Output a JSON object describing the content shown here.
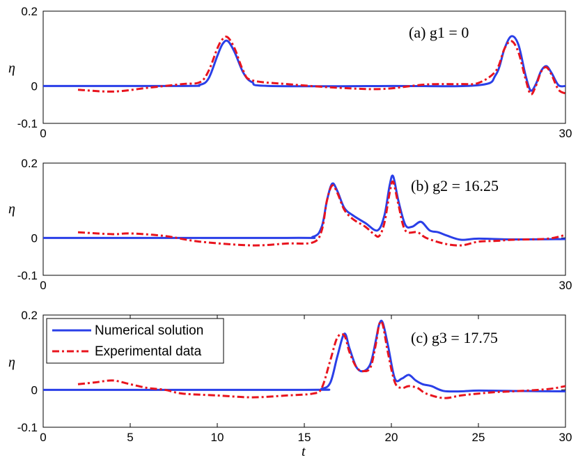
{
  "figure": {
    "xlabel": "t"
  },
  "legend": {
    "entries": [
      "Numerical solution",
      "Experimental data"
    ]
  },
  "chart_data": [
    {
      "type": "line",
      "panel_label": "(a) g1 = 0",
      "ylabel": "η",
      "xlim": [
        0,
        30
      ],
      "ylim": [
        -0.1,
        0.2
      ],
      "xticks": [
        0,
        30
      ],
      "xtick_labels": [
        "0",
        "30"
      ],
      "yticks": [
        -0.1,
        0,
        0.2
      ],
      "ytick_labels": [
        "-0.1",
        "0",
        "0.2"
      ],
      "series": [
        {
          "name": "Numerical solution",
          "color": "#2a3fe8",
          "style": "solid",
          "x": [
            0,
            8,
            9,
            9.5,
            10,
            10.3,
            10.6,
            11,
            11.5,
            12,
            13,
            20,
            25,
            26,
            26.5,
            26.9,
            27.3,
            27.7,
            28,
            28.3,
            28.6,
            28.9,
            29.2,
            29.6,
            30
          ],
          "y": [
            0,
            0,
            0.003,
            0.02,
            0.08,
            0.112,
            0.12,
            0.09,
            0.035,
            0.01,
            0,
            0,
            0.002,
            0.03,
            0.1,
            0.133,
            0.11,
            0.03,
            -0.012,
            0.005,
            0.04,
            0.053,
            0.035,
            0.002,
            0
          ]
        },
        {
          "name": "Experimental data",
          "color": "#e8141e",
          "style": "dashdot",
          "x": [
            2,
            4,
            6,
            8,
            9,
            9.5,
            10,
            10.3,
            10.6,
            11,
            11.5,
            12,
            14,
            17,
            19.5,
            22,
            24,
            25,
            26,
            26.5,
            26.9,
            27.3,
            27.7,
            28,
            28.3,
            28.6,
            28.9,
            29.2,
            29.6,
            30
          ],
          "y": [
            -0.01,
            -0.015,
            -0.005,
            0.005,
            0.01,
            0.04,
            0.1,
            0.125,
            0.13,
            0.1,
            0.04,
            0.015,
            0.005,
            -0.005,
            -0.008,
            0.004,
            0.005,
            0.008,
            0.04,
            0.1,
            0.12,
            0.09,
            0.02,
            -0.022,
            0,
            0.038,
            0.05,
            0.03,
            -0.01,
            -0.02
          ]
        }
      ]
    },
    {
      "type": "line",
      "panel_label": "(b) g2 = 16.25",
      "ylabel": "η",
      "xlim": [
        0,
        30
      ],
      "ylim": [
        -0.1,
        0.2
      ],
      "xticks": [
        0,
        30
      ],
      "xtick_labels": [
        "0",
        "30"
      ],
      "yticks": [
        -0.1,
        0,
        0.2
      ],
      "ytick_labels": [
        "-0.1",
        "0",
        "0.2"
      ],
      "series": [
        {
          "name": "Numerical solution",
          "color": "#2a3fe8",
          "style": "solid",
          "x": [
            0,
            14,
            15.5,
            16,
            16.3,
            16.6,
            16.9,
            17.3,
            17.8,
            18.5,
            19.2,
            19.6,
            19.9,
            20.1,
            20.4,
            20.8,
            21.2,
            21.7,
            22.2,
            22.7,
            23.2,
            24,
            25,
            27,
            30
          ],
          "y": [
            0,
            0,
            0.003,
            0.03,
            0.1,
            0.145,
            0.125,
            0.08,
            0.06,
            0.04,
            0.02,
            0.06,
            0.14,
            0.165,
            0.1,
            0.035,
            0.03,
            0.043,
            0.02,
            0.015,
            0.006,
            -0.005,
            -0.002,
            -0.004,
            -0.003
          ]
        },
        {
          "name": "Experimental data",
          "color": "#e8141e",
          "style": "dashdot",
          "x": [
            2,
            4,
            5,
            7,
            9,
            12,
            14,
            15.5,
            16,
            16.3,
            16.6,
            16.9,
            17.3,
            17.8,
            18.5,
            19,
            19.3,
            19.6,
            19.9,
            20.1,
            20.4,
            20.8,
            21.5,
            22,
            23,
            24,
            25,
            26,
            27,
            29,
            30
          ],
          "y": [
            0.015,
            0.01,
            0.012,
            0.005,
            -0.01,
            -0.02,
            -0.015,
            -0.012,
            0.02,
            0.1,
            0.14,
            0.12,
            0.075,
            0.05,
            0.03,
            0.01,
            0.005,
            0.04,
            0.12,
            0.15,
            0.09,
            0.02,
            0.015,
            0,
            -0.015,
            -0.02,
            -0.01,
            -0.008,
            -0.005,
            -0.002,
            0.008
          ]
        }
      ]
    },
    {
      "type": "line",
      "panel_label": "(c) g3 = 17.75",
      "ylabel": "η",
      "xlabel": "t",
      "xlim": [
        0,
        30
      ],
      "ylim": [
        -0.1,
        0.2
      ],
      "xticks": [
        0,
        5,
        10,
        15,
        20,
        25,
        30
      ],
      "xtick_labels": [
        "0",
        "5",
        "10",
        "15",
        "20",
        "25",
        "30"
      ],
      "yticks": [
        -0.1,
        0,
        0.2
      ],
      "ytick_labels": [
        "-0.1",
        "0",
        "0.2"
      ],
      "series": [
        {
          "name": "Numerical solution",
          "color": "#2a3fe8",
          "style": "solid",
          "x": [
            0,
            15,
            16,
            16.5,
            16.9,
            17.3,
            17.6,
            18,
            18.4,
            18.8,
            19.1,
            19.3,
            19.5,
            19.8,
            20.2,
            20.6,
            21,
            21.4,
            21.8,
            22.3,
            23,
            24,
            25,
            27,
            30
          ],
          "y": [
            0,
            0,
            0.003,
            0.02,
            0.09,
            0.15,
            0.11,
            0.06,
            0.05,
            0.07,
            0.13,
            0.175,
            0.18,
            0.12,
            0.03,
            0.03,
            0.04,
            0.025,
            0.015,
            0.01,
            -0.003,
            -0.004,
            -0.002,
            -0.003,
            -0.004
          ]
        },
        {
          "name": "Experimental data",
          "color": "#e8141e",
          "style": "dashdot",
          "x": [
            2,
            3,
            4,
            5,
            6,
            7,
            8,
            10,
            12,
            14,
            15.5,
            16,
            16.5,
            16.9,
            17.3,
            17.6,
            18,
            18.4,
            18.8,
            19.1,
            19.3,
            19.5,
            19.8,
            20.2,
            20.6,
            21,
            21.5,
            22,
            23,
            24,
            25,
            26,
            27,
            29,
            30
          ],
          "y": [
            0.015,
            0.02,
            0.025,
            0.015,
            0.005,
            0,
            -0.01,
            -0.015,
            -0.02,
            -0.015,
            -0.01,
            0.005,
            0.08,
            0.14,
            0.145,
            0.1,
            0.06,
            0.05,
            0.06,
            0.12,
            0.175,
            0.175,
            0.1,
            0.02,
            0.005,
            0.01,
            0.005,
            -0.01,
            -0.022,
            -0.015,
            -0.01,
            -0.006,
            -0.004,
            0.002,
            0.01
          ]
        }
      ]
    }
  ]
}
